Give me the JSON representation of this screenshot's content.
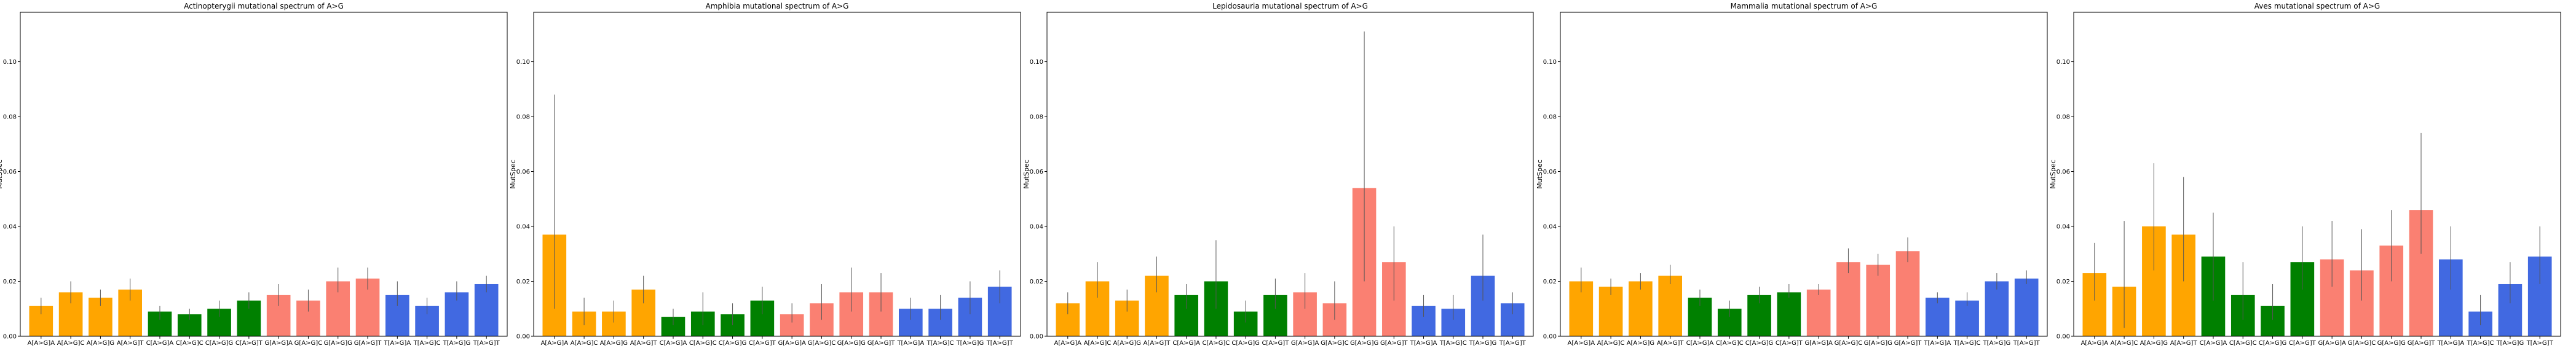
{
  "chart_data": [
    {
      "type": "bar",
      "title": "Actinopterygii mutational spectrum of A>G",
      "ylabel": "MutSpec",
      "xlabel": "",
      "ylim": [
        0,
        0.118
      ],
      "yticks": [
        "0.00",
        "0.02",
        "0.04",
        "0.06",
        "0.08",
        "0.10"
      ],
      "categories": [
        "A[A>G]A",
        "A[A>G]C",
        "A[A>G]G",
        "A[A>G]T",
        "C[A>G]A",
        "C[A>G]C",
        "C[A>G]G",
        "C[A>G]T",
        "G[A>G]A",
        "G[A>G]C",
        "G[A>G]G",
        "G[A>G]T",
        "T[A>G]A",
        "T[A>G]C",
        "T[A>G]G",
        "T[A>G]T"
      ],
      "values": [
        0.011,
        0.016,
        0.014,
        0.017,
        0.009,
        0.008,
        0.01,
        0.013,
        0.015,
        0.013,
        0.02,
        0.021,
        0.015,
        0.011,
        0.016,
        0.019
      ],
      "err_low": [
        0.008,
        0.012,
        0.011,
        0.013,
        0.006,
        0.006,
        0.007,
        0.01,
        0.011,
        0.009,
        0.016,
        0.017,
        0.011,
        0.008,
        0.013,
        0.016
      ],
      "err_high": [
        0.014,
        0.02,
        0.017,
        0.021,
        0.011,
        0.01,
        0.013,
        0.016,
        0.019,
        0.017,
        0.025,
        0.025,
        0.02,
        0.014,
        0.02,
        0.022
      ],
      "colors": [
        "#ffa500",
        "#ffa500",
        "#ffa500",
        "#ffa500",
        "#008000",
        "#008000",
        "#008000",
        "#008000",
        "#fa8072",
        "#fa8072",
        "#fa8072",
        "#fa8072",
        "#4169e1",
        "#4169e1",
        "#4169e1",
        "#4169e1"
      ]
    },
    {
      "type": "bar",
      "title": "Amphibia mutational spectrum of A>G",
      "ylabel": "MutSpec",
      "xlabel": "",
      "ylim": [
        0,
        0.118
      ],
      "yticks": [
        "0.00",
        "0.02",
        "0.04",
        "0.06",
        "0.08",
        "0.10"
      ],
      "categories": [
        "A[A>G]A",
        "A[A>G]C",
        "A[A>G]G",
        "A[A>G]T",
        "C[A>G]A",
        "C[A>G]C",
        "C[A>G]G",
        "C[A>G]T",
        "G[A>G]A",
        "G[A>G]C",
        "G[A>G]G",
        "G[A>G]T",
        "T[A>G]A",
        "T[A>G]C",
        "T[A>G]G",
        "T[A>G]T"
      ],
      "values": [
        0.037,
        0.009,
        0.009,
        0.017,
        0.007,
        0.009,
        0.008,
        0.013,
        0.008,
        0.012,
        0.016,
        0.016,
        0.01,
        0.01,
        0.014,
        0.018
      ],
      "err_low": [
        0.01,
        0.004,
        0.005,
        0.012,
        0.004,
        0.004,
        0.004,
        0.008,
        0.005,
        0.006,
        0.009,
        0.009,
        0.006,
        0.006,
        0.008,
        0.012
      ],
      "err_high": [
        0.088,
        0.014,
        0.013,
        0.022,
        0.01,
        0.016,
        0.012,
        0.018,
        0.012,
        0.019,
        0.025,
        0.023,
        0.014,
        0.015,
        0.02,
        0.024
      ],
      "colors": [
        "#ffa500",
        "#ffa500",
        "#ffa500",
        "#ffa500",
        "#008000",
        "#008000",
        "#008000",
        "#008000",
        "#fa8072",
        "#fa8072",
        "#fa8072",
        "#fa8072",
        "#4169e1",
        "#4169e1",
        "#4169e1",
        "#4169e1"
      ]
    },
    {
      "type": "bar",
      "title": "Lepidosauria mutational spectrum of A>G",
      "ylabel": "MutSpec",
      "xlabel": "",
      "ylim": [
        0,
        0.118
      ],
      "yticks": [
        "0.00",
        "0.02",
        "0.04",
        "0.06",
        "0.08",
        "0.10"
      ],
      "categories": [
        "A[A>G]A",
        "A[A>G]C",
        "A[A>G]G",
        "A[A>G]T",
        "C[A>G]A",
        "C[A>G]C",
        "C[A>G]G",
        "C[A>G]T",
        "G[A>G]A",
        "G[A>G]C",
        "G[A>G]G",
        "G[A>G]T",
        "T[A>G]A",
        "T[A>G]C",
        "T[A>G]G",
        "T[A>G]T"
      ],
      "values": [
        0.012,
        0.02,
        0.013,
        0.022,
        0.015,
        0.02,
        0.009,
        0.015,
        0.016,
        0.012,
        0.054,
        0.027,
        0.011,
        0.01,
        0.022,
        0.012
      ],
      "err_low": [
        0.008,
        0.014,
        0.009,
        0.016,
        0.01,
        0.01,
        0.005,
        0.01,
        0.01,
        0.006,
        0.02,
        0.013,
        0.007,
        0.006,
        0.013,
        0.008
      ],
      "err_high": [
        0.016,
        0.027,
        0.017,
        0.029,
        0.019,
        0.035,
        0.013,
        0.021,
        0.023,
        0.02,
        0.111,
        0.04,
        0.015,
        0.015,
        0.037,
        0.016
      ],
      "colors": [
        "#ffa500",
        "#ffa500",
        "#ffa500",
        "#ffa500",
        "#008000",
        "#008000",
        "#008000",
        "#008000",
        "#fa8072",
        "#fa8072",
        "#fa8072",
        "#fa8072",
        "#4169e1",
        "#4169e1",
        "#4169e1",
        "#4169e1"
      ]
    },
    {
      "type": "bar",
      "title": "Mammalia mutational spectrum of A>G",
      "ylabel": "MutSpec",
      "xlabel": "",
      "ylim": [
        0,
        0.118
      ],
      "yticks": [
        "0.00",
        "0.02",
        "0.04",
        "0.06",
        "0.08",
        "0.10"
      ],
      "categories": [
        "A[A>G]A",
        "A[A>G]C",
        "A[A>G]G",
        "A[A>G]T",
        "C[A>G]A",
        "C[A>G]C",
        "C[A>G]G",
        "C[A>G]T",
        "G[A>G]A",
        "G[A>G]C",
        "G[A>G]G",
        "G[A>G]T",
        "T[A>G]A",
        "T[A>G]C",
        "T[A>G]G",
        "T[A>G]T"
      ],
      "values": [
        0.02,
        0.018,
        0.02,
        0.022,
        0.014,
        0.01,
        0.015,
        0.016,
        0.017,
        0.027,
        0.026,
        0.031,
        0.014,
        0.013,
        0.02,
        0.021
      ],
      "err_low": [
        0.016,
        0.015,
        0.017,
        0.019,
        0.011,
        0.007,
        0.012,
        0.014,
        0.015,
        0.023,
        0.022,
        0.027,
        0.012,
        0.011,
        0.017,
        0.019
      ],
      "err_high": [
        0.025,
        0.021,
        0.023,
        0.026,
        0.017,
        0.013,
        0.018,
        0.019,
        0.019,
        0.032,
        0.03,
        0.036,
        0.016,
        0.016,
        0.023,
        0.024
      ],
      "colors": [
        "#ffa500",
        "#ffa500",
        "#ffa500",
        "#ffa500",
        "#008000",
        "#008000",
        "#008000",
        "#008000",
        "#fa8072",
        "#fa8072",
        "#fa8072",
        "#fa8072",
        "#4169e1",
        "#4169e1",
        "#4169e1",
        "#4169e1"
      ]
    },
    {
      "type": "bar",
      "title": "Aves mutational spectrum of A>G",
      "ylabel": "MutSpec",
      "xlabel": "",
      "ylim": [
        0,
        0.118
      ],
      "yticks": [
        "0.00",
        "0.02",
        "0.04",
        "0.06",
        "0.08",
        "0.10"
      ],
      "categories": [
        "A[A>G]A",
        "A[A>G]C",
        "A[A>G]G",
        "A[A>G]T",
        "C[A>G]A",
        "C[A>G]C",
        "C[A>G]G",
        "C[A>G]T",
        "G[A>G]A",
        "G[A>G]C",
        "G[A>G]G",
        "G[A>G]T",
        "T[A>G]A",
        "T[A>G]C",
        "T[A>G]G",
        "T[A>G]T"
      ],
      "values": [
        0.023,
        0.018,
        0.04,
        0.037,
        0.029,
        0.015,
        0.011,
        0.027,
        0.028,
        0.024,
        0.033,
        0.046,
        0.028,
        0.009,
        0.019,
        0.029
      ],
      "err_low": [
        0.013,
        0.003,
        0.024,
        0.02,
        0.013,
        0.006,
        0.006,
        0.017,
        0.018,
        0.013,
        0.02,
        0.03,
        0.017,
        0.004,
        0.012,
        0.019
      ],
      "err_high": [
        0.034,
        0.042,
        0.063,
        0.058,
        0.045,
        0.027,
        0.019,
        0.04,
        0.042,
        0.039,
        0.046,
        0.074,
        0.04,
        0.015,
        0.027,
        0.04
      ],
      "colors": [
        "#ffa500",
        "#ffa500",
        "#ffa500",
        "#ffa500",
        "#008000",
        "#008000",
        "#008000",
        "#008000",
        "#fa8072",
        "#fa8072",
        "#fa8072",
        "#fa8072",
        "#4169e1",
        "#4169e1",
        "#4169e1",
        "#4169e1"
      ]
    }
  ]
}
